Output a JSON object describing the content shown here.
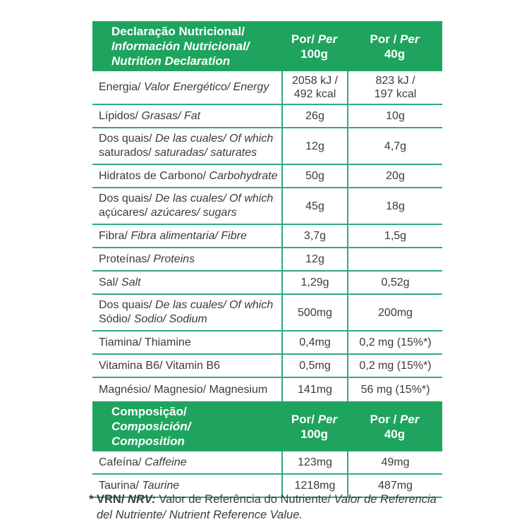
{
  "colors": {
    "header_bg": "#1fa45f",
    "grid_line": "#2fab79",
    "text": "#3b3b3b",
    "header_text": "#ffffff"
  },
  "nutrition_table": {
    "header": {
      "line1_regular": "Declaração Nutricional/",
      "line2_italic": "Información Nutricional/",
      "line3_italic": "Nutrition Declaration",
      "col_100g": {
        "prefix": "Por/ ",
        "per": "Per",
        "amount": "100g"
      },
      "col_40g": {
        "prefix": "Por / ",
        "per": "Per",
        "amount": "40g"
      }
    },
    "rows": [
      {
        "label_lines": [
          [
            {
              "t": "Energia/ "
            },
            {
              "t": "Valor Energético/ Energy",
              "i": true
            }
          ]
        ],
        "per_100g": [
          "2058 kJ /",
          "492 kcal"
        ],
        "per_40g": [
          "823 kJ /",
          "197 kcal"
        ]
      },
      {
        "label_lines": [
          [
            {
              "t": "Lípidos/ "
            },
            {
              "t": "Grasas/ Fat",
              "i": true
            }
          ]
        ],
        "per_100g": [
          "26g"
        ],
        "per_40g": [
          "10g"
        ]
      },
      {
        "label_lines": [
          [
            {
              "t": "Dos quais/ "
            },
            {
              "t": "De las cuales/ Of which",
              "i": true
            }
          ],
          [
            {
              "t": "saturados/ "
            },
            {
              "t": "saturadas/ saturates",
              "i": true
            }
          ]
        ],
        "per_100g": [
          "12g"
        ],
        "per_40g": [
          "4,7g"
        ]
      },
      {
        "label_lines": [
          [
            {
              "t": "Hidratos de Carbono/ "
            },
            {
              "t": "Carbohydrate",
              "i": true
            }
          ]
        ],
        "per_100g": [
          "50g"
        ],
        "per_40g": [
          "20g"
        ]
      },
      {
        "label_lines": [
          [
            {
              "t": "Dos quais/ "
            },
            {
              "t": "De las cuales/ Of which",
              "i": true
            }
          ],
          [
            {
              "t": "açúcares/ "
            },
            {
              "t": "azúcares/ sugars",
              "i": true
            }
          ]
        ],
        "per_100g": [
          "45g"
        ],
        "per_40g": [
          "18g"
        ]
      },
      {
        "label_lines": [
          [
            {
              "t": "Fibra/ "
            },
            {
              "t": "Fibra alimentaria/ Fibre",
              "i": true
            }
          ]
        ],
        "per_100g": [
          "3,7g"
        ],
        "per_40g": [
          "1,5g"
        ]
      },
      {
        "label_lines": [
          [
            {
              "t": "Proteínas/ "
            },
            {
              "t": "Proteins",
              "i": true
            }
          ]
        ],
        "per_100g": [
          "12g"
        ],
        "per_40g": []
      },
      {
        "label_lines": [
          [
            {
              "t": "Sal/ "
            },
            {
              "t": "Salt",
              "i": true
            }
          ]
        ],
        "per_100g": [
          "1,29g"
        ],
        "per_40g": [
          "0,52g"
        ]
      },
      {
        "label_lines": [
          [
            {
              "t": "Dos quais/ "
            },
            {
              "t": "De las cuales/ Of which",
              "i": true
            }
          ],
          [
            {
              "t": "Sódio/ "
            },
            {
              "t": "Sodio/ Sodium",
              "i": true
            }
          ]
        ],
        "per_100g": [
          "500mg"
        ],
        "per_40g": [
          "200mg"
        ]
      },
      {
        "label_lines": [
          [
            {
              "t": "Tiamina/ Thiamine"
            }
          ]
        ],
        "per_100g": [
          "0,4mg"
        ],
        "per_40g": [
          "0,2 mg (15%*)"
        ]
      },
      {
        "label_lines": [
          [
            {
              "t": "Vitamina B6/ Vitamin B6"
            }
          ]
        ],
        "per_100g": [
          "0,5mg"
        ],
        "per_40g": [
          "0,2 mg (15%*)"
        ]
      },
      {
        "label_lines": [
          [
            {
              "t": "Magnésio/ Magnesio/ Magnesium"
            }
          ]
        ],
        "per_100g": [
          "141mg"
        ],
        "per_40g": [
          "56 mg (15%*)"
        ]
      }
    ]
  },
  "composition_table": {
    "header": {
      "line1_regular": "Composição/ ",
      "line1_italic": "Composición/",
      "line2_italic": "Composition",
      "col_100g": {
        "prefix": "Por/ ",
        "per": "Per",
        "amount": "100g"
      },
      "col_40g": {
        "prefix": "Por / ",
        "per": "Per",
        "amount": "40g"
      }
    },
    "rows": [
      {
        "label_lines": [
          [
            {
              "t": "Cafeína/ "
            },
            {
              "t": "Caffeine",
              "i": true
            }
          ]
        ],
        "per_100g": [
          "123mg"
        ],
        "per_40g": [
          "49mg"
        ]
      },
      {
        "label_lines": [
          [
            {
              "t": "Taurina/ "
            },
            {
              "t": "Taurine",
              "i": true
            }
          ]
        ],
        "per_100g": [
          "1218mg"
        ],
        "per_40g": [
          "487mg"
        ]
      }
    ]
  },
  "footnote": {
    "segments": [
      {
        "t": "* ",
        "b": true
      },
      {
        "t": "VRN/ ",
        "b": true
      },
      {
        "t": "NRV: ",
        "b": true,
        "i": true
      },
      {
        "t": "Valor de Referência do Nutriente/ "
      },
      {
        "t": "Valor de Referencia del Nutriente/ Nutrient Reference Value.",
        "i": true
      }
    ]
  }
}
